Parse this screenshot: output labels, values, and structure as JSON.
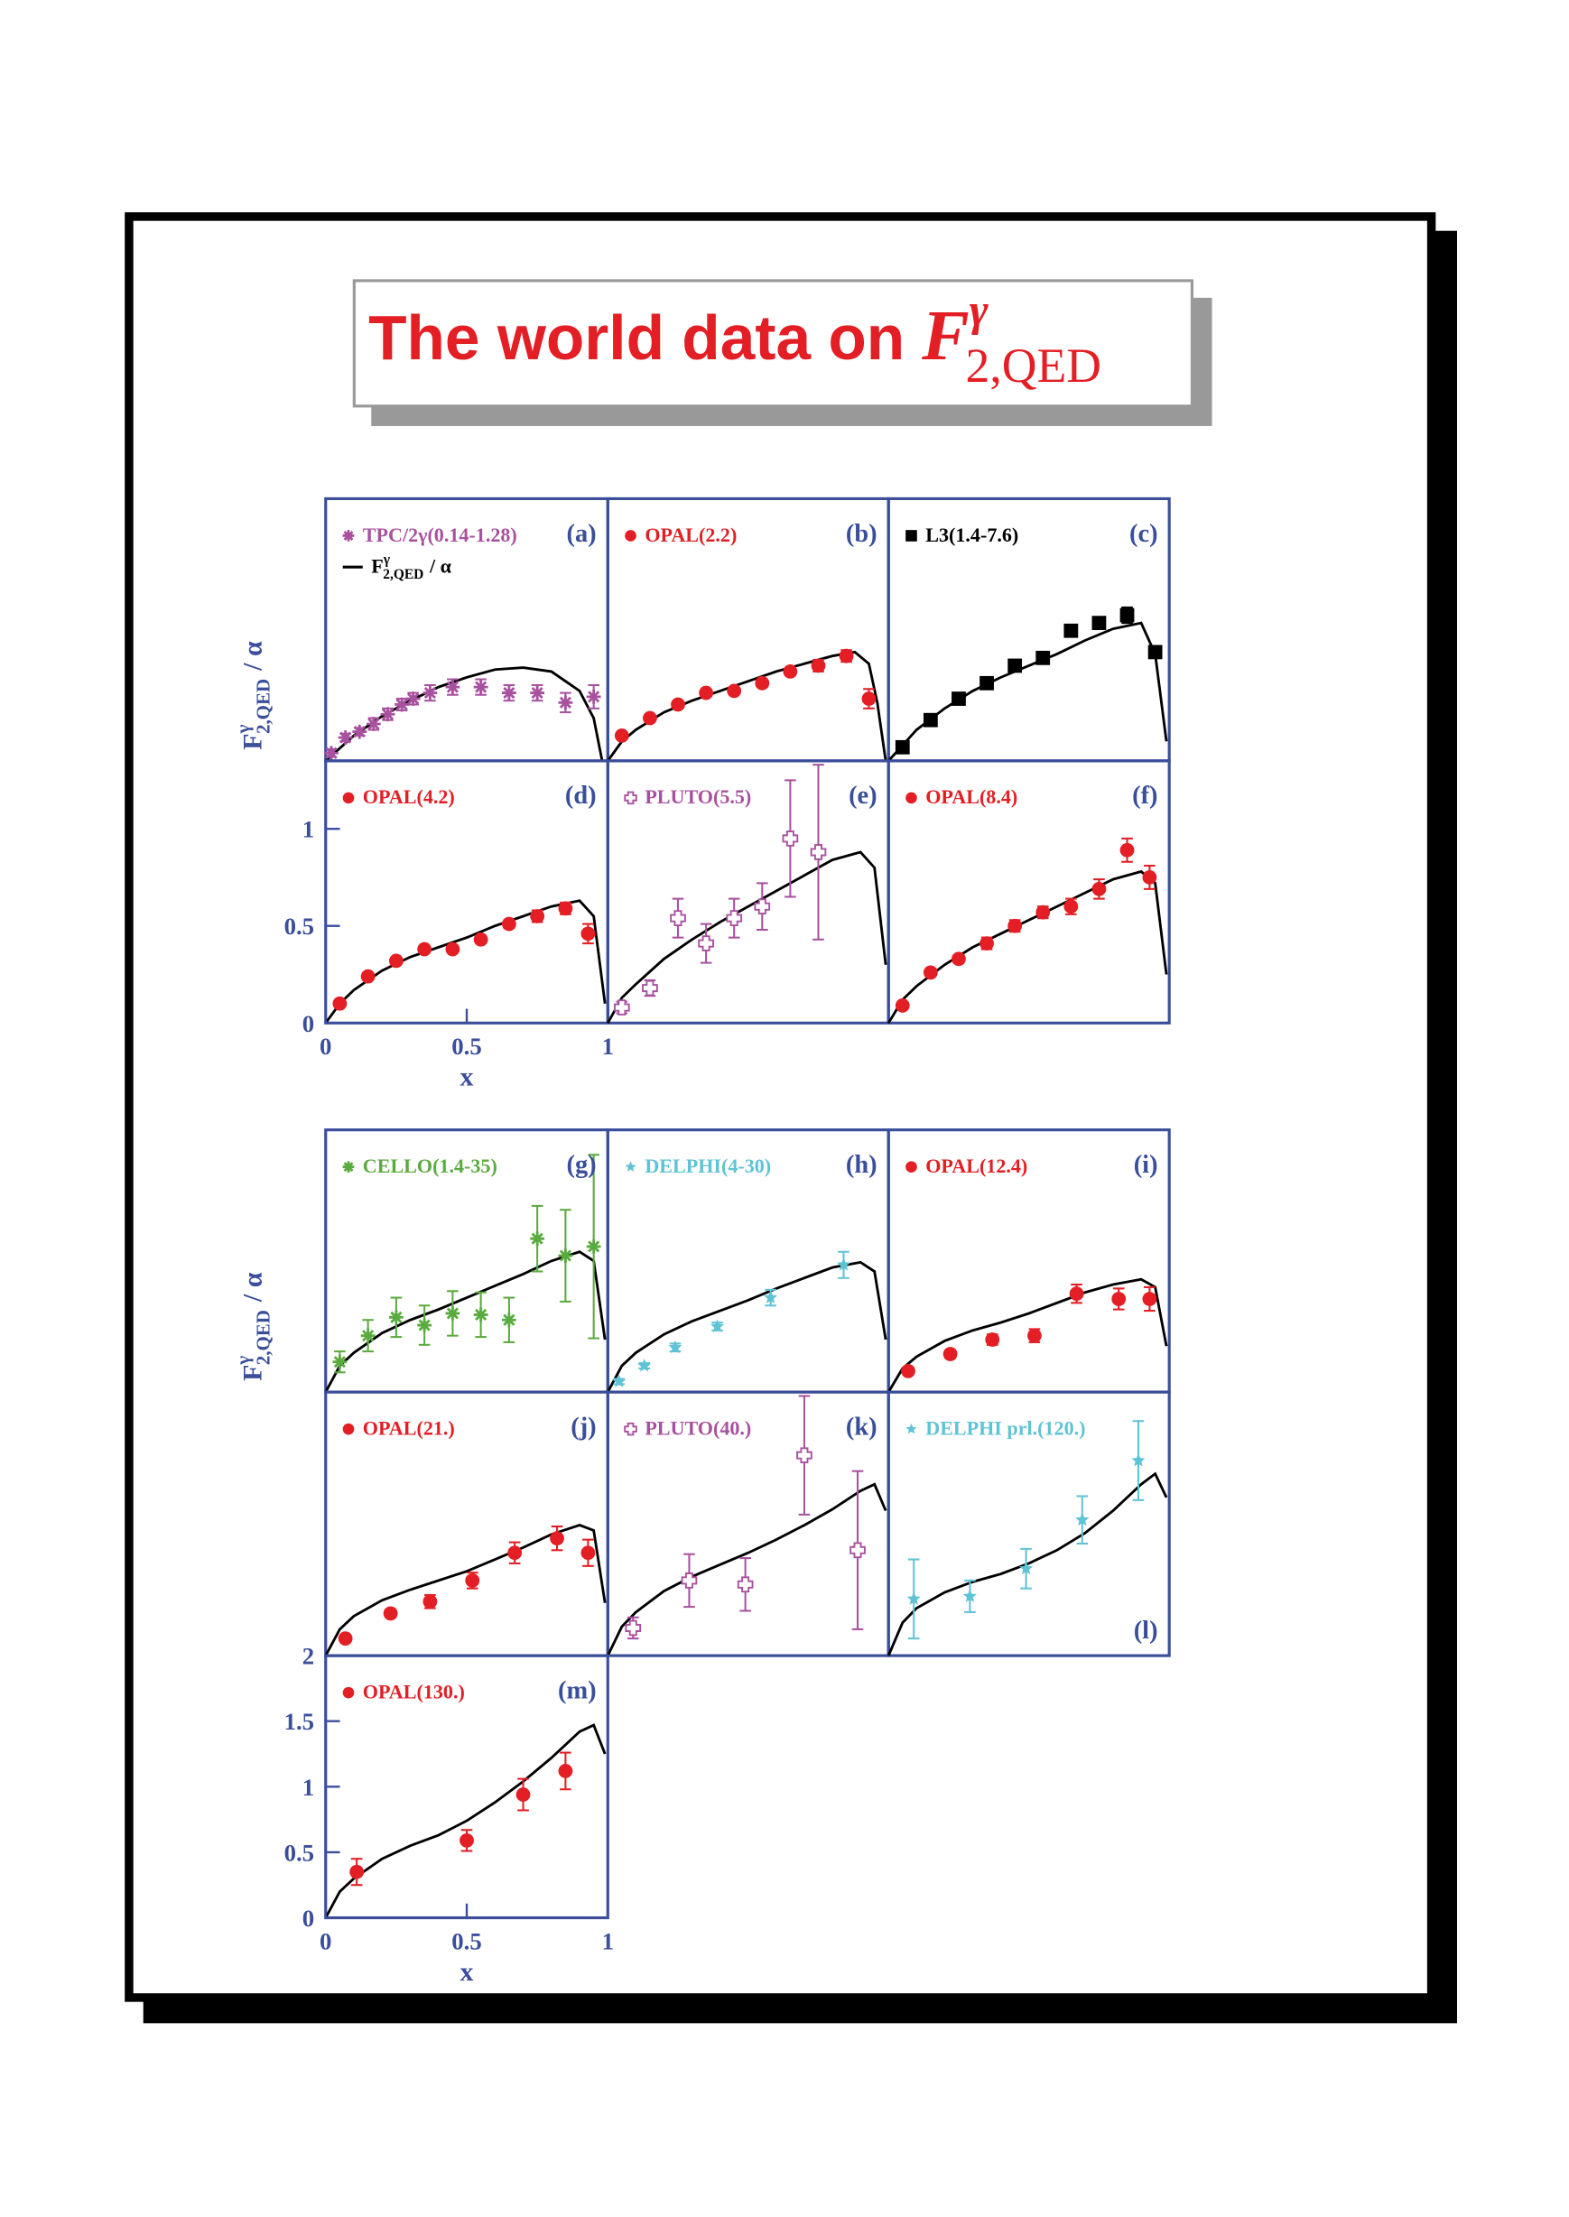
{
  "title": {
    "text": "The world data on",
    "symbol": "F",
    "sup": "γ",
    "sub": "2,QED"
  },
  "chart_data": [
    {
      "type": "scatter",
      "label": "(a)",
      "ylim": [
        0,
        1.35
      ],
      "xlim": [
        0,
        1
      ],
      "ylabel": {
        "symbol": "F",
        "sup": "γ",
        "sub": "2,QED",
        "suffix": "/ α"
      },
      "series": [
        {
          "name": "TPC/2γ(0.14-1.28)",
          "color": "#a8519e",
          "marker": "asterisk",
          "x": [
            0.02,
            0.07,
            0.12,
            0.17,
            0.22,
            0.27,
            0.31,
            0.37,
            0.45,
            0.55,
            0.65,
            0.75,
            0.85,
            0.95
          ],
          "values": [
            0.04,
            0.12,
            0.15,
            0.19,
            0.24,
            0.29,
            0.32,
            0.35,
            0.38,
            0.38,
            0.35,
            0.35,
            0.3,
            0.33
          ],
          "errors": [
            0.02,
            0.02,
            0.02,
            0.03,
            0.03,
            0.03,
            0.03,
            0.04,
            0.04,
            0.04,
            0.04,
            0.04,
            0.05,
            0.06
          ]
        }
      ],
      "curve": {
        "name": {
          "symbol": "F",
          "sup": "γ",
          "sub": "2,QED",
          "suffix": "/ α"
        },
        "color": "#000000",
        "x": [
          0,
          0.1,
          0.2,
          0.3,
          0.4,
          0.5,
          0.6,
          0.7,
          0.8,
          0.9,
          0.95,
          0.98
        ],
        "values": [
          0,
          0.13,
          0.23,
          0.31,
          0.38,
          0.43,
          0.47,
          0.48,
          0.46,
          0.36,
          0.22,
          0
        ]
      }
    },
    {
      "type": "scatter",
      "label": "(b)",
      "ylim": [
        0,
        1.35
      ],
      "xlim": [
        0,
        1
      ],
      "series": [
        {
          "name": "OPAL(2.2)",
          "color": "#e31e24",
          "marker": "circle",
          "x": [
            0.05,
            0.15,
            0.25,
            0.35,
            0.45,
            0.55,
            0.65,
            0.75,
            0.85,
            0.93
          ],
          "values": [
            0.13,
            0.22,
            0.29,
            0.35,
            0.36,
            0.4,
            0.46,
            0.49,
            0.54,
            0.32
          ],
          "errors": [
            0.01,
            0.01,
            0.01,
            0.01,
            0.01,
            0.02,
            0.02,
            0.03,
            0.03,
            0.05
          ]
        }
      ],
      "curve": {
        "color": "#000000",
        "x": [
          0,
          0.05,
          0.1,
          0.2,
          0.3,
          0.4,
          0.5,
          0.6,
          0.7,
          0.8,
          0.88,
          0.93,
          0.96,
          0.99
        ],
        "values": [
          0,
          0.1,
          0.16,
          0.25,
          0.31,
          0.36,
          0.41,
          0.46,
          0.5,
          0.54,
          0.56,
          0.5,
          0.3,
          0
        ]
      }
    },
    {
      "type": "scatter",
      "label": "(c)",
      "ylim": [
        0,
        1.35
      ],
      "xlim": [
        0,
        1
      ],
      "series": [
        {
          "name": "L3(1.4-7.6)",
          "color": "#000000",
          "marker": "square",
          "x": [
            0.05,
            0.15,
            0.25,
            0.35,
            0.45,
            0.55,
            0.65,
            0.75,
            0.85,
            0.95
          ],
          "values": [
            0.07,
            0.21,
            0.32,
            0.4,
            0.49,
            0.53,
            0.67,
            0.71,
            0.75,
            0.56
          ],
          "errors": [
            0.01,
            0.01,
            0.01,
            0.01,
            0.02,
            0.02,
            0.02,
            0.03,
            0.04,
            0.03
          ]
        }
      ],
      "curve": {
        "color": "#000000",
        "x": [
          0,
          0.05,
          0.1,
          0.2,
          0.3,
          0.4,
          0.5,
          0.6,
          0.7,
          0.8,
          0.9,
          0.95,
          0.99
        ],
        "values": [
          0,
          0.08,
          0.16,
          0.27,
          0.36,
          0.43,
          0.49,
          0.55,
          0.62,
          0.68,
          0.71,
          0.55,
          0.1
        ]
      }
    },
    {
      "type": "scatter",
      "label": "(d)",
      "ylim": [
        0,
        1.35
      ],
      "xlim": [
        0,
        1
      ],
      "yticks": [
        0,
        0.5,
        1
      ],
      "xticks": [
        0,
        0.5,
        1
      ],
      "xlabel": "x",
      "series": [
        {
          "name": "OPAL(4.2)",
          "color": "#e31e24",
          "marker": "circle",
          "x": [
            0.05,
            0.15,
            0.25,
            0.35,
            0.45,
            0.55,
            0.65,
            0.75,
            0.85,
            0.93
          ],
          "values": [
            0.1,
            0.24,
            0.32,
            0.38,
            0.38,
            0.43,
            0.51,
            0.55,
            0.59,
            0.46
          ],
          "errors": [
            0.01,
            0.01,
            0.01,
            0.01,
            0.01,
            0.02,
            0.02,
            0.03,
            0.03,
            0.05
          ]
        }
      ],
      "curve": {
        "color": "#000000",
        "x": [
          0,
          0.05,
          0.1,
          0.2,
          0.3,
          0.4,
          0.5,
          0.6,
          0.7,
          0.8,
          0.9,
          0.95,
          0.99
        ],
        "values": [
          0,
          0.1,
          0.17,
          0.27,
          0.34,
          0.39,
          0.44,
          0.5,
          0.55,
          0.6,
          0.63,
          0.55,
          0.1
        ]
      }
    },
    {
      "type": "scatter",
      "label": "(e)",
      "ylim": [
        0,
        1.35
      ],
      "xlim": [
        0,
        1
      ],
      "series": [
        {
          "name": "PLUTO(5.5)",
          "color": "#a8519e",
          "marker": "opencross",
          "x": [
            0.05,
            0.15,
            0.25,
            0.35,
            0.45,
            0.55,
            0.65,
            0.75
          ],
          "values": [
            0.08,
            0.18,
            0.54,
            0.41,
            0.54,
            0.6,
            0.95,
            0.88
          ],
          "errors": [
            0.03,
            0.04,
            0.1,
            0.1,
            0.1,
            0.12,
            0.3,
            0.45
          ]
        }
      ],
      "curve": {
        "color": "#000000",
        "x": [
          0,
          0.05,
          0.1,
          0.2,
          0.3,
          0.4,
          0.5,
          0.6,
          0.7,
          0.8,
          0.9,
          0.95,
          0.99
        ],
        "values": [
          0,
          0.13,
          0.2,
          0.33,
          0.43,
          0.52,
          0.6,
          0.68,
          0.76,
          0.84,
          0.88,
          0.8,
          0.3
        ]
      }
    },
    {
      "type": "scatter",
      "label": "(f)",
      "ylim": [
        0,
        1.35
      ],
      "xlim": [
        0,
        1
      ],
      "series": [
        {
          "name": "OPAL(8.4)",
          "color": "#e31e24",
          "marker": "circle",
          "x": [
            0.05,
            0.15,
            0.25,
            0.35,
            0.45,
            0.55,
            0.65,
            0.75,
            0.85,
            0.93
          ],
          "values": [
            0.09,
            0.26,
            0.33,
            0.41,
            0.5,
            0.57,
            0.6,
            0.69,
            0.89,
            0.75
          ],
          "errors": [
            0.01,
            0.01,
            0.02,
            0.03,
            0.03,
            0.03,
            0.04,
            0.05,
            0.06,
            0.06
          ]
        }
      ],
      "curve": {
        "color": "#000000",
        "x": [
          0,
          0.05,
          0.1,
          0.2,
          0.3,
          0.4,
          0.5,
          0.6,
          0.7,
          0.8,
          0.9,
          0.95,
          0.99
        ],
        "values": [
          0,
          0.12,
          0.19,
          0.3,
          0.39,
          0.46,
          0.53,
          0.6,
          0.67,
          0.74,
          0.78,
          0.72,
          0.25
        ]
      }
    },
    {
      "type": "scatter",
      "label": "(g)",
      "ylim": [
        0,
        2
      ],
      "xlim": [
        0,
        1
      ],
      "ylabel": {
        "symbol": "F",
        "sup": "γ",
        "sub": "2,QED",
        "suffix": "/ α"
      },
      "series": [
        {
          "name": "CELLO(1.4-35)",
          "color": "#5aab3f",
          "marker": "asterisk",
          "x": [
            0.05,
            0.15,
            0.25,
            0.35,
            0.45,
            0.55,
            0.65,
            0.75,
            0.85,
            0.95
          ],
          "values": [
            0.23,
            0.43,
            0.57,
            0.51,
            0.6,
            0.59,
            0.55,
            1.17,
            1.04,
            1.11
          ],
          "errors": [
            0.08,
            0.12,
            0.15,
            0.15,
            0.17,
            0.17,
            0.17,
            0.25,
            0.35,
            0.7
          ]
        }
      ],
      "curve": {
        "color": "#000000",
        "x": [
          0,
          0.05,
          0.1,
          0.2,
          0.3,
          0.4,
          0.5,
          0.6,
          0.7,
          0.8,
          0.9,
          0.95,
          0.99
        ],
        "values": [
          0,
          0.2,
          0.3,
          0.45,
          0.55,
          0.63,
          0.72,
          0.81,
          0.9,
          1.0,
          1.07,
          1.0,
          0.4
        ]
      }
    },
    {
      "type": "scatter",
      "label": "(h)",
      "ylim": [
        0,
        2
      ],
      "xlim": [
        0,
        1
      ],
      "series": [
        {
          "name": "DELPHI(4-30)",
          "color": "#5ec3d6",
          "marker": "star",
          "x": [
            0.04,
            0.13,
            0.24,
            0.39,
            0.58,
            0.84
          ],
          "values": [
            0.08,
            0.2,
            0.34,
            0.5,
            0.72,
            0.97
          ],
          "errors": [
            0.02,
            0.02,
            0.03,
            0.03,
            0.06,
            0.1
          ]
        }
      ],
      "curve": {
        "color": "#000000",
        "x": [
          0,
          0.05,
          0.1,
          0.2,
          0.3,
          0.4,
          0.5,
          0.6,
          0.7,
          0.8,
          0.9,
          0.95,
          0.99
        ],
        "values": [
          0,
          0.2,
          0.3,
          0.44,
          0.54,
          0.62,
          0.7,
          0.79,
          0.87,
          0.95,
          0.99,
          0.92,
          0.4
        ]
      }
    },
    {
      "type": "scatter",
      "label": "(i)",
      "ylim": [
        0,
        2
      ],
      "xlim": [
        0,
        1
      ],
      "series": [
        {
          "name": "OPAL(12.4)",
          "color": "#e31e24",
          "marker": "circle",
          "x": [
            0.07,
            0.22,
            0.37,
            0.52,
            0.67,
            0.82,
            0.93
          ],
          "values": [
            0.16,
            0.29,
            0.4,
            0.43,
            0.75,
            0.71,
            0.71
          ],
          "errors": [
            0.02,
            0.03,
            0.04,
            0.05,
            0.07,
            0.08,
            0.09
          ]
        }
      ],
      "curve": {
        "color": "#000000",
        "x": [
          0,
          0.05,
          0.1,
          0.2,
          0.3,
          0.4,
          0.5,
          0.6,
          0.7,
          0.8,
          0.9,
          0.95,
          0.99
        ],
        "values": [
          0,
          0.18,
          0.27,
          0.39,
          0.47,
          0.53,
          0.6,
          0.68,
          0.76,
          0.82,
          0.86,
          0.8,
          0.35
        ]
      }
    },
    {
      "type": "scatter",
      "label": "(j)",
      "ylim": [
        0,
        2
      ],
      "xlim": [
        0,
        1
      ],
      "series": [
        {
          "name": "OPAL(21.)",
          "color": "#e31e24",
          "marker": "circle",
          "x": [
            0.07,
            0.23,
            0.37,
            0.52,
            0.67,
            0.82,
            0.93
          ],
          "values": [
            0.13,
            0.32,
            0.41,
            0.57,
            0.78,
            0.89,
            0.78
          ],
          "errors": [
            0.02,
            0.03,
            0.05,
            0.06,
            0.08,
            0.09,
            0.1
          ]
        }
      ],
      "curve": {
        "color": "#000000",
        "x": [
          0,
          0.05,
          0.1,
          0.2,
          0.3,
          0.4,
          0.5,
          0.6,
          0.7,
          0.8,
          0.9,
          0.95,
          0.99
        ],
        "values": [
          0,
          0.2,
          0.3,
          0.42,
          0.5,
          0.57,
          0.64,
          0.73,
          0.82,
          0.92,
          0.99,
          0.95,
          0.4
        ]
      }
    },
    {
      "type": "scatter",
      "label": "(k)",
      "ylim": [
        0,
        2
      ],
      "xlim": [
        0,
        1
      ],
      "series": [
        {
          "name": "PLUTO(40.)",
          "color": "#a8519e",
          "marker": "opencross",
          "x": [
            0.09,
            0.29,
            0.49,
            0.7,
            0.89
          ],
          "values": [
            0.21,
            0.57,
            0.54,
            1.52,
            0.8
          ],
          "errors": [
            0.08,
            0.2,
            0.2,
            0.45,
            0.6
          ]
        }
      ],
      "curve": {
        "color": "#000000",
        "x": [
          0,
          0.05,
          0.1,
          0.2,
          0.3,
          0.4,
          0.5,
          0.6,
          0.7,
          0.8,
          0.9,
          0.95,
          0.99
        ],
        "values": [
          0,
          0.22,
          0.33,
          0.49,
          0.6,
          0.69,
          0.78,
          0.88,
          0.99,
          1.11,
          1.25,
          1.3,
          1.1
        ]
      }
    },
    {
      "type": "scatter",
      "label": "(l)",
      "ylim": [
        0,
        2
      ],
      "xlim": [
        0,
        1
      ],
      "series": [
        {
          "name": "DELPHI prl.(120.)",
          "color": "#5ec3d6",
          "marker": "star",
          "x": [
            0.09,
            0.29,
            0.49,
            0.69,
            0.89
          ],
          "values": [
            0.43,
            0.45,
            0.66,
            1.03,
            1.48
          ],
          "errors": [
            0.3,
            0.12,
            0.15,
            0.18,
            0.3
          ]
        }
      ],
      "curve": {
        "color": "#000000",
        "x": [
          0,
          0.05,
          0.1,
          0.2,
          0.3,
          0.4,
          0.5,
          0.6,
          0.7,
          0.8,
          0.9,
          0.95,
          0.99
        ],
        "values": [
          0,
          0.25,
          0.36,
          0.48,
          0.56,
          0.62,
          0.7,
          0.8,
          0.93,
          1.1,
          1.3,
          1.38,
          1.2
        ]
      }
    },
    {
      "type": "scatter",
      "label": "(m)",
      "ylim": [
        0,
        2
      ],
      "xlim": [
        0,
        1
      ],
      "yticks": [
        0,
        0.5,
        1,
        1.5,
        2
      ],
      "xticks": [
        0,
        0.5,
        1
      ],
      "xlabel": "x",
      "series": [
        {
          "name": "OPAL(130.)",
          "color": "#e31e24",
          "marker": "circle",
          "x": [
            0.11,
            0.5,
            0.7,
            0.85
          ],
          "values": [
            0.35,
            0.59,
            0.94,
            1.12
          ],
          "errors": [
            0.1,
            0.08,
            0.12,
            0.14
          ]
        }
      ],
      "curve": {
        "color": "#000000",
        "x": [
          0,
          0.05,
          0.1,
          0.2,
          0.3,
          0.4,
          0.5,
          0.6,
          0.7,
          0.8,
          0.9,
          0.95,
          0.99
        ],
        "values": [
          0,
          0.2,
          0.3,
          0.45,
          0.55,
          0.63,
          0.74,
          0.88,
          1.04,
          1.22,
          1.42,
          1.47,
          1.25
        ]
      }
    }
  ]
}
